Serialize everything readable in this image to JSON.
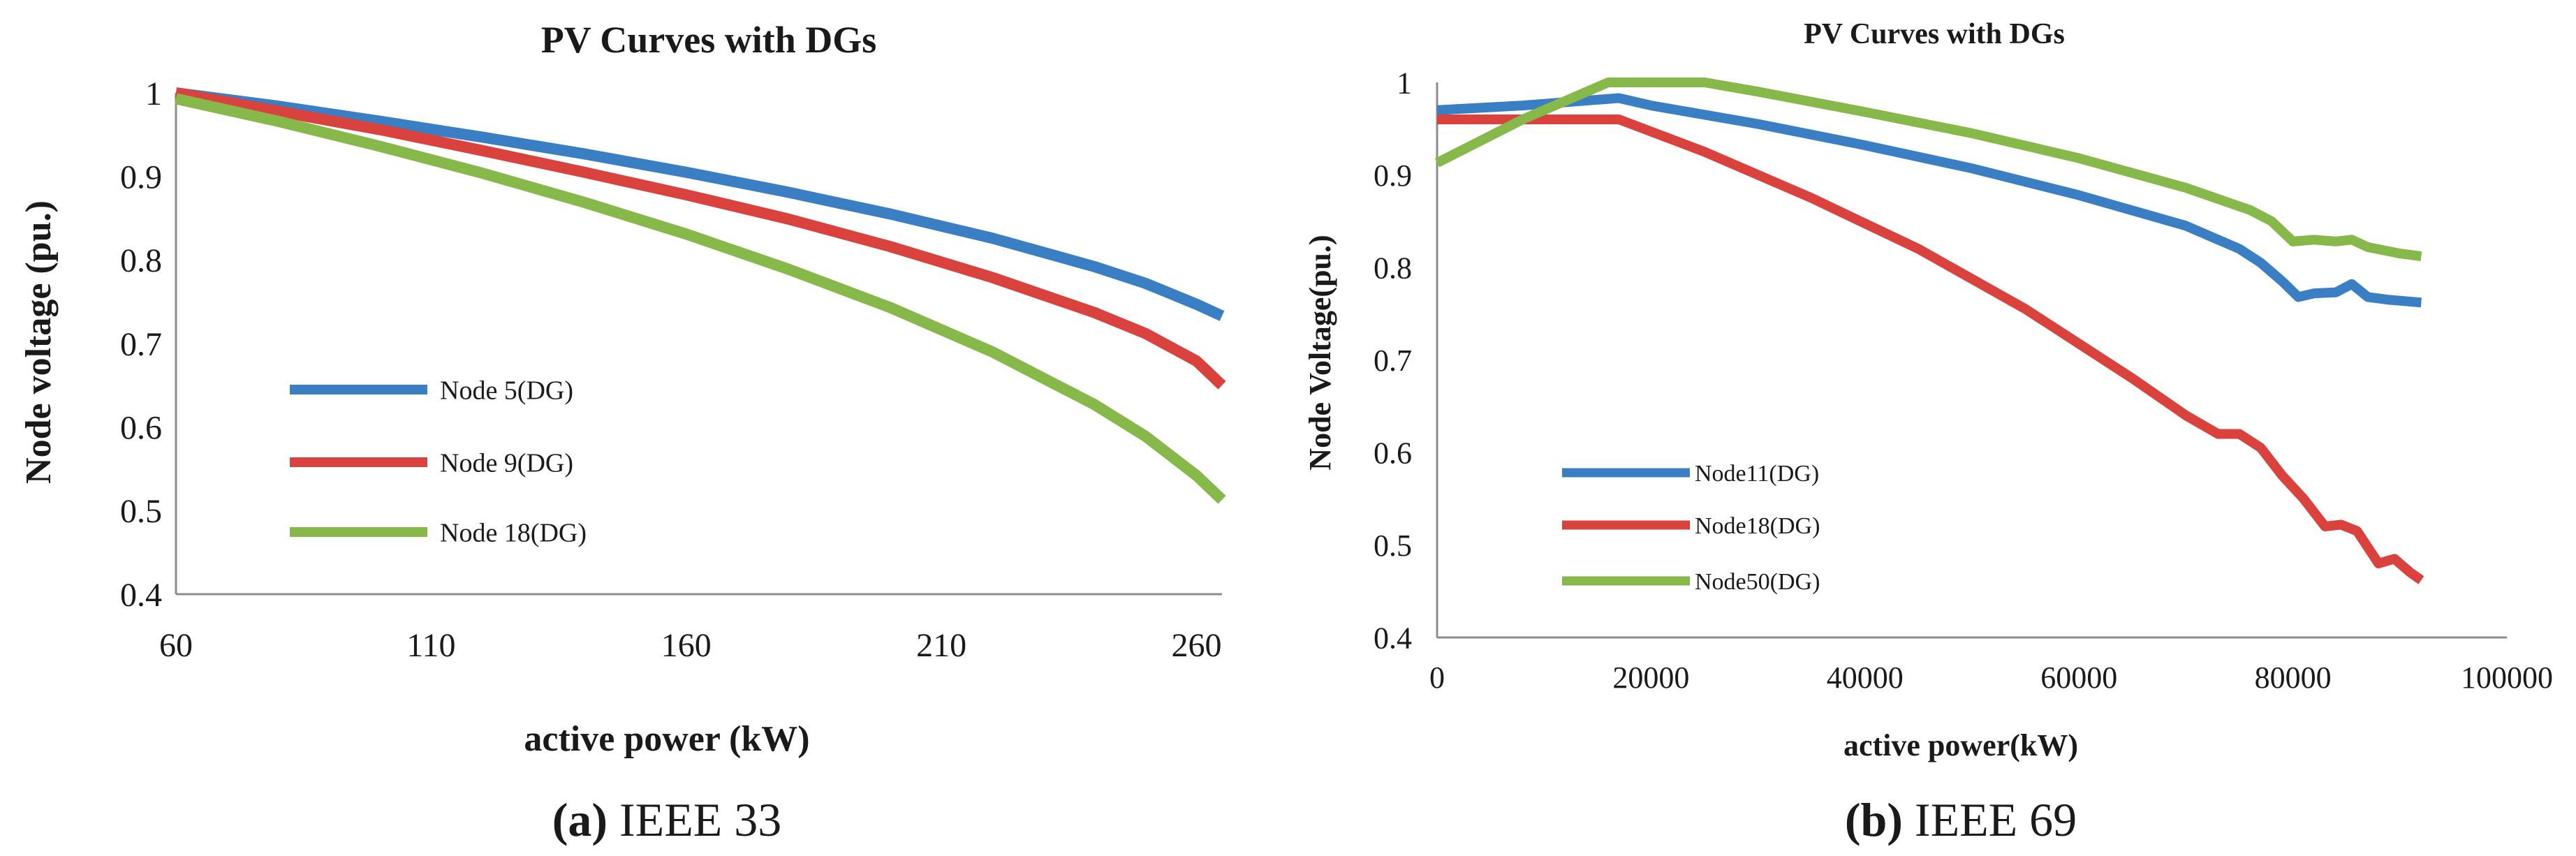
{
  "chart_data": [
    {
      "type": "line",
      "title": "PV Curves with DGs",
      "xlabel": "active power (kW)",
      "ylabel": "Node voltage (pu.)",
      "xlim": [
        60,
        265
      ],
      "ylim": [
        0.4,
        1.0
      ],
      "xticks": [
        60,
        110,
        160,
        210,
        260
      ],
      "xtick_labels": [
        "60",
        "110",
        "160",
        "210",
        "260"
      ],
      "yticks": [
        0.4,
        0.5,
        0.6,
        0.7,
        0.8,
        0.9,
        1.0
      ],
      "ytick_labels": [
        "0.4",
        "0.5",
        "0.6",
        "0.7",
        "0.8",
        "0.9",
        "1"
      ],
      "grid": false,
      "legend": "bottom-left",
      "caption_label": "(a)",
      "caption_text": " IEEE 33",
      "series": [
        {
          "name": "Node 5(DG)",
          "color": "#3a7fc4",
          "x": [
            60,
            80,
            100,
            120,
            140,
            160,
            180,
            200,
            220,
            240,
            250,
            260,
            265
          ],
          "y": [
            1.0,
            0.984,
            0.966,
            0.947,
            0.927,
            0.905,
            0.881,
            0.855,
            0.826,
            0.792,
            0.772,
            0.747,
            0.733
          ]
        },
        {
          "name": "Node 9(DG)",
          "color": "#d9423d",
          "x": [
            60,
            80,
            100,
            120,
            140,
            160,
            180,
            200,
            220,
            240,
            250,
            260,
            265
          ],
          "y": [
            1.0,
            0.978,
            0.956,
            0.931,
            0.905,
            0.878,
            0.849,
            0.816,
            0.779,
            0.737,
            0.712,
            0.679,
            0.65
          ]
        },
        {
          "name": "Node 18(DG)",
          "color": "#86b84a",
          "x": [
            60,
            80,
            100,
            120,
            140,
            160,
            180,
            200,
            220,
            240,
            250,
            260,
            265
          ],
          "y": [
            0.993,
            0.966,
            0.936,
            0.904,
            0.869,
            0.831,
            0.789,
            0.743,
            0.69,
            0.627,
            0.589,
            0.542,
            0.513
          ]
        }
      ]
    },
    {
      "type": "line",
      "title": "PV Curves with DGs",
      "xlabel": "active power(kW)",
      "ylabel": "Node Voltage(pu.)",
      "xlim": [
        0,
        100000
      ],
      "ylim": [
        0.4,
        1.0
      ],
      "xticks": [
        0,
        20000,
        40000,
        60000,
        80000,
        100000
      ],
      "xtick_labels": [
        "0",
        "20000",
        "40000",
        "60000",
        "80000",
        "100000"
      ],
      "yticks": [
        0.4,
        0.5,
        0.6,
        0.7,
        0.8,
        0.9,
        1.0
      ],
      "ytick_labels": [
        "0.4",
        "0.5",
        "0.6",
        "0.7",
        "0.8",
        "0.9",
        "1"
      ],
      "grid": false,
      "legend": "bottom-left",
      "caption_label": "(b)",
      "caption_text": " IEEE 69",
      "series": [
        {
          "name": "Node11(DG)",
          "color": "#3a7fc4",
          "x": [
            0,
            8000,
            17000,
            20000,
            30000,
            40000,
            50000,
            60000,
            70000,
            75000,
            77000,
            79000,
            80500,
            82000,
            84000,
            85500,
            87000,
            89000,
            92000
          ],
          "y": [
            0.97,
            0.975,
            0.983,
            0.975,
            0.955,
            0.932,
            0.907,
            0.878,
            0.845,
            0.82,
            0.805,
            0.785,
            0.768,
            0.772,
            0.773,
            0.782,
            0.768,
            0.765,
            0.762
          ]
        },
        {
          "name": "Node18(DG)",
          "color": "#d9423d",
          "x": [
            0,
            10000,
            17000,
            25000,
            35000,
            45000,
            55000,
            65000,
            70000,
            73000,
            75000,
            77000,
            79000,
            81000,
            83000,
            84500,
            86000,
            88000,
            89500,
            91000,
            92000
          ],
          "y": [
            0.96,
            0.96,
            0.96,
            0.925,
            0.875,
            0.82,
            0.755,
            0.68,
            0.64,
            0.62,
            0.62,
            0.605,
            0.575,
            0.55,
            0.52,
            0.522,
            0.515,
            0.48,
            0.485,
            0.47,
            0.462
          ]
        },
        {
          "name": "Node50(DG)",
          "color": "#86b84a",
          "x": [
            0,
            8000,
            16000,
            25000,
            30000,
            40000,
            50000,
            60000,
            70000,
            76000,
            78000,
            80000,
            82000,
            84000,
            85500,
            87000,
            90000,
            92000
          ],
          "y": [
            0.913,
            0.96,
            1.0,
            1.0,
            0.99,
            0.968,
            0.945,
            0.918,
            0.886,
            0.862,
            0.85,
            0.828,
            0.83,
            0.828,
            0.83,
            0.822,
            0.815,
            0.812
          ]
        }
      ]
    }
  ]
}
